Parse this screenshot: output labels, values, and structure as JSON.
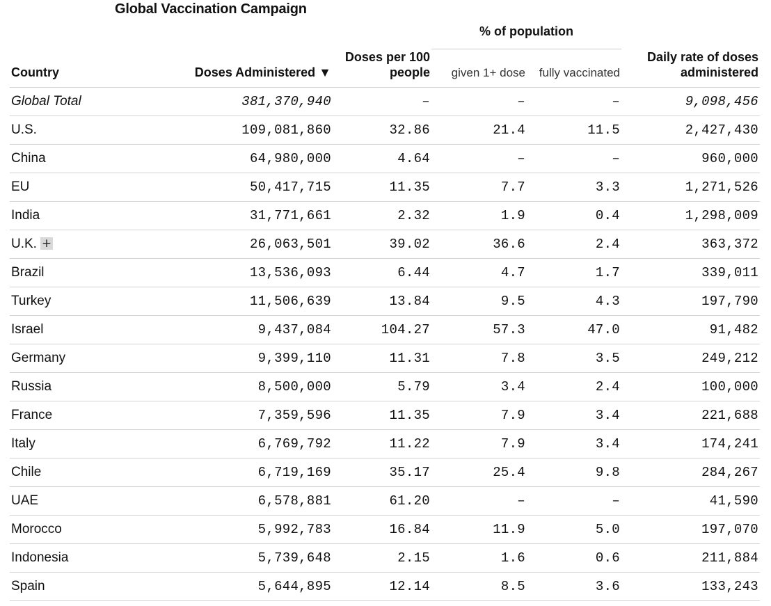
{
  "title": "Global Vaccination Campaign",
  "headers": {
    "country": "Country",
    "doses_administered": "Doses Administered ▼",
    "doses_per_100": "Doses per 100 people",
    "pct_population": "% of population",
    "given_one_dose": "given 1+ dose",
    "fully_vaccinated": "fully vaccinated",
    "daily_rate": "Daily rate of doses administered"
  },
  "total": {
    "name": "Global Total",
    "doses": "381,370,940",
    "per100": "–",
    "given": "–",
    "fully": "–",
    "daily": "9,098,456"
  },
  "expand_symbol": "+",
  "rows": [
    {
      "name": "U.S.",
      "doses": "109,081,860",
      "per100": "32.86",
      "given": "21.4",
      "fully": "11.5",
      "daily": "2,427,430"
    },
    {
      "name": "China",
      "doses": "64,980,000",
      "per100": "4.64",
      "given": "–",
      "fully": "–",
      "daily": "960,000"
    },
    {
      "name": "EU",
      "doses": "50,417,715",
      "per100": "11.35",
      "given": "7.7",
      "fully": "3.3",
      "daily": "1,271,526"
    },
    {
      "name": "India",
      "doses": "31,771,661",
      "per100": "2.32",
      "given": "1.9",
      "fully": "0.4",
      "daily": "1,298,009"
    },
    {
      "name": "U.K.",
      "doses": "26,063,501",
      "per100": "39.02",
      "given": "36.6",
      "fully": "2.4",
      "daily": "363,372"
    },
    {
      "name": "Brazil",
      "doses": "13,536,093",
      "per100": "6.44",
      "given": "4.7",
      "fully": "1.7",
      "daily": "339,011"
    },
    {
      "name": "Turkey",
      "doses": "11,506,639",
      "per100": "13.84",
      "given": "9.5",
      "fully": "4.3",
      "daily": "197,790"
    },
    {
      "name": "Israel",
      "doses": "9,437,084",
      "per100": "104.27",
      "given": "57.3",
      "fully": "47.0",
      "daily": "91,482"
    },
    {
      "name": "Germany",
      "doses": "9,399,110",
      "per100": "11.31",
      "given": "7.8",
      "fully": "3.5",
      "daily": "249,212"
    },
    {
      "name": "Russia",
      "doses": "8,500,000",
      "per100": "5.79",
      "given": "3.4",
      "fully": "2.4",
      "daily": "100,000"
    },
    {
      "name": "France",
      "doses": "7,359,596",
      "per100": "11.35",
      "given": "7.9",
      "fully": "3.4",
      "daily": "221,688"
    },
    {
      "name": "Italy",
      "doses": "6,769,792",
      "per100": "11.22",
      "given": "7.9",
      "fully": "3.4",
      "daily": "174,241"
    },
    {
      "name": "Chile",
      "doses": "6,719,169",
      "per100": "35.17",
      "given": "25.4",
      "fully": "9.8",
      "daily": "284,267"
    },
    {
      "name": "UAE",
      "doses": "6,578,881",
      "per100": "61.20",
      "given": "–",
      "fully": "–",
      "daily": "41,590"
    },
    {
      "name": "Morocco",
      "doses": "5,992,783",
      "per100": "16.84",
      "given": "11.9",
      "fully": "5.0",
      "daily": "197,070"
    },
    {
      "name": "Indonesia",
      "doses": "5,739,648",
      "per100": "2.15",
      "given": "1.6",
      "fully": "0.6",
      "daily": "211,884"
    },
    {
      "name": "Spain",
      "doses": "5,644,895",
      "per100": "12.14",
      "given": "8.5",
      "fully": "3.6",
      "daily": "133,243"
    }
  ]
}
